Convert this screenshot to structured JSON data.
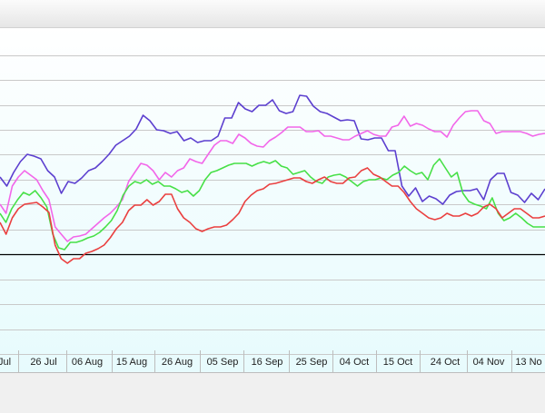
{
  "chart_data": {
    "type": "line",
    "x_tick_labels": [
      "Jul",
      "26 Jul",
      "06 Aug",
      "15 Aug",
      "26 Aug",
      "05 Sep",
      "16 Sep",
      "25 Sep",
      "04 Oct",
      "15 Oct",
      "24 Oct",
      "04 Nov",
      "13 No"
    ],
    "grid": true,
    "legend": "none",
    "background": "#ebfbfd",
    "series": [
      {
        "color": "#5c3fcf",
        "values": [
          165,
          175,
          160,
          148,
          140,
          142,
          145,
          158,
          165,
          183,
          170,
          172,
          166,
          158,
          155,
          148,
          140,
          130,
          125,
          120,
          112,
          97,
          103,
          113,
          114,
          117,
          115,
          125,
          122,
          127,
          125,
          125,
          120,
          100,
          100,
          83,
          90,
          93,
          86,
          86,
          80,
          92,
          95,
          93,
          75,
          76,
          87,
          93,
          95,
          99,
          103,
          102,
          103,
          123,
          124,
          122,
          122,
          136,
          136,
          175,
          186,
          177,
          192,
          186,
          189,
          195,
          185,
          181,
          180,
          180,
          178,
          190,
          168,
          161,
          161,
          182,
          185,
          193,
          183,
          190,
          178
        ]
      },
      {
        "color": "#f266e9",
        "values": [
          195,
          205,
          175,
          165,
          158,
          163,
          168,
          180,
          190,
          220,
          228,
          236,
          231,
          230,
          228,
          222,
          216,
          210,
          205,
          198,
          190,
          170,
          160,
          150,
          152,
          158,
          168,
          160,
          165,
          158,
          155,
          145,
          148,
          150,
          140,
          130,
          125,
          125,
          128,
          118,
          122,
          128,
          131,
          132,
          125,
          121,
          116,
          110,
          110,
          110,
          115,
          115,
          114,
          120,
          120,
          122,
          124,
          124,
          120,
          117,
          114,
          118,
          120,
          120,
          110,
          108,
          98,
          109,
          106,
          108,
          112,
          115,
          115,
          121,
          108,
          100,
          93,
          92,
          92,
          103,
          106,
          117,
          115,
          115,
          115,
          115,
          117,
          120,
          118,
          117
        ]
      },
      {
        "color": "#47e047",
        "values": [
          205,
          215,
          200,
          190,
          182,
          185,
          180,
          188,
          198,
          228,
          243,
          245,
          237,
          237,
          235,
          232,
          230,
          226,
          220,
          213,
          202,
          185,
          175,
          170,
          172,
          168,
          173,
          170,
          175,
          175,
          178,
          182,
          180,
          186,
          180,
          168,
          160,
          158,
          155,
          152,
          150,
          150,
          150,
          153,
          150,
          148,
          150,
          147,
          153,
          155,
          162,
          160,
          158,
          165,
          170,
          172,
          165,
          163,
          162,
          165,
          170,
          175,
          170,
          168,
          168,
          166,
          168,
          163,
          160,
          153,
          158,
          162,
          160,
          168,
          152,
          145,
          155,
          165,
          160,
          183,
          192,
          195,
          197,
          200,
          188,
          205,
          213,
          210,
          205,
          210,
          216,
          220,
          220,
          220
        ]
      },
      {
        "color": "#ea3f3f",
        "values": [
          215,
          228,
          210,
          200,
          195,
          194,
          193,
          198,
          204,
          240,
          255,
          260,
          255,
          255,
          249,
          247,
          244,
          240,
          232,
          222,
          215,
          202,
          196,
          196,
          190,
          196,
          192,
          184,
          184,
          200,
          210,
          215,
          222,
          225,
          222,
          220,
          220,
          218,
          212,
          205,
          192,
          185,
          180,
          178,
          173,
          172,
          170,
          168,
          166,
          166,
          170,
          172,
          168,
          165,
          170,
          172,
          172,
          166,
          165,
          158,
          155,
          162,
          165,
          170,
          175,
          175,
          182,
          192,
          200,
          205,
          210,
          212,
          210,
          205,
          208,
          208,
          205,
          208,
          205,
          198,
          195,
          200,
          210,
          205,
          200,
          200,
          205,
          210,
          210,
          208
        ]
      }
    ]
  }
}
